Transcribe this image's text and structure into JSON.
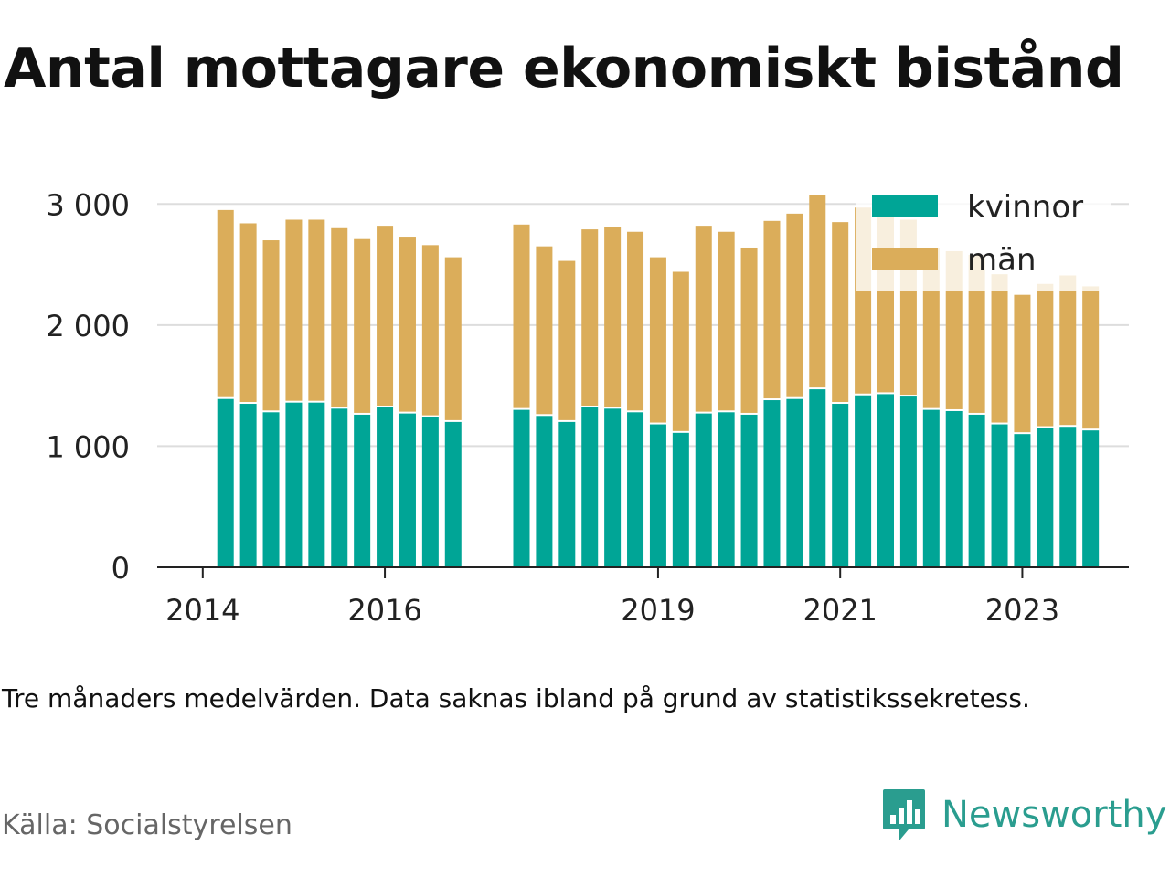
{
  "title": "Antal mottagare ekonomiskt bistånd",
  "note": "Tre månaders medelvärden. Data saknas ibland på grund av statistikssekretess.",
  "source": "Källa: Socialstyrelsen",
  "brand": {
    "name": "Newsworthy",
    "icon": "newsworthy-logo-icon"
  },
  "colors": {
    "kvinnor": "#00a596",
    "man": "#dbad5a",
    "grid": "#dddddd",
    "axis": "#222222",
    "brand": "#2a9d8f"
  },
  "chart_data": {
    "type": "bar",
    "stacked": true,
    "ylim": [
      0,
      3100
    ],
    "yticks": [
      0,
      1000,
      2000,
      3000
    ],
    "ytick_labels": [
      "0",
      "1 000",
      "2 000",
      "3 000"
    ],
    "xticks": [
      {
        "x": 2014.0,
        "label": "2014"
      },
      {
        "x": 2016.0,
        "label": "2016"
      },
      {
        "x": 2019.0,
        "label": "2019"
      },
      {
        "x": 2021.0,
        "label": "2021"
      },
      {
        "x": 2023.0,
        "label": "2023"
      }
    ],
    "xlim": [
      2013.5,
      2024.17
    ],
    "grid": true,
    "legend_position": "top-right",
    "x": [
      2014.25,
      2014.5,
      2014.75,
      2015.0,
      2015.25,
      2015.5,
      2015.75,
      2016.0,
      2016.25,
      2016.5,
      2016.75,
      2017.5,
      2017.75,
      2018.0,
      2018.25,
      2018.5,
      2018.75,
      2019.0,
      2019.25,
      2019.5,
      2019.75,
      2020.0,
      2020.25,
      2020.5,
      2020.75,
      2021.0,
      2021.25,
      2021.5,
      2021.75,
      2022.0,
      2022.25,
      2022.5,
      2022.75,
      2023.0,
      2023.25,
      2023.5,
      2023.75
    ],
    "series": [
      {
        "name": "kvinnor",
        "color": "#00a596",
        "values": [
          1390,
          1350,
          1280,
          1360,
          1360,
          1310,
          1260,
          1320,
          1270,
          1240,
          1200,
          1300,
          1250,
          1200,
          1320,
          1310,
          1280,
          1180,
          1110,
          1270,
          1280,
          1260,
          1380,
          1390,
          1470,
          1350,
          1420,
          1430,
          1410,
          1300,
          1290,
          1260,
          1180,
          1100,
          1150,
          1160,
          1130
        ]
      },
      {
        "name": "män",
        "color": "#dbad5a",
        "values": [
          1560,
          1490,
          1420,
          1510,
          1510,
          1490,
          1450,
          1500,
          1460,
          1420,
          1360,
          1530,
          1400,
          1330,
          1470,
          1500,
          1490,
          1380,
          1330,
          1550,
          1490,
          1380,
          1480,
          1530,
          1600,
          1500,
          1550,
          1550,
          1460,
          1340,
          1320,
          1320,
          1240,
          1150,
          1190,
          1250,
          1190
        ]
      }
    ]
  }
}
